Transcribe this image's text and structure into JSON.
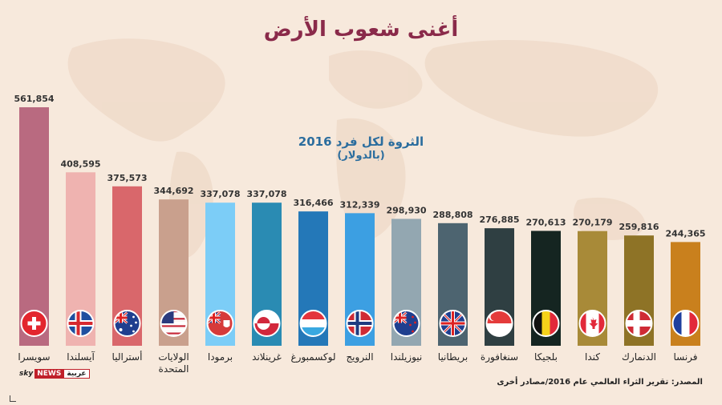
{
  "header": {
    "title": "أغنى شعوب الأرض"
  },
  "chart_data": {
    "type": "bar",
    "subtitle": "الثروة لكل فرد 2016",
    "unit": "(بالدولار)",
    "categories": [
      "سويسرا",
      "آيسلندا",
      "أستراليا",
      "الولايات المتحدة",
      "برمودا",
      "غرينلاند",
      "لوكسمبورغ",
      "النرويج",
      "نيوزيلندا",
      "بريطانيا",
      "سنغافورة",
      "بلجيكا",
      "كندا",
      "الدنمارك",
      "فرنسا"
    ],
    "values": [
      561854,
      408595,
      375573,
      344692,
      337078,
      337078,
      316466,
      312339,
      298930,
      288808,
      276885,
      270613,
      270179,
      259816,
      244365
    ],
    "value_labels": [
      "561,854",
      "408,595",
      "375,573",
      "344,692",
      "337,078",
      "337,078",
      "316,466",
      "312,339",
      "298,930",
      "288,808",
      "276,885",
      "270,613",
      "270,179",
      "259,816",
      "244,365"
    ],
    "bar_colors": [
      "#b96a80",
      "#efb3b0",
      "#d9676b",
      "#c9a08d",
      "#7ccdf7",
      "#2a8bb3",
      "#2478b8",
      "#3c9fe2",
      "#93a7b1",
      "#4d6470",
      "#2f3f42",
      "#152521",
      "#a88a38",
      "#8e7326",
      "#c9801d"
    ],
    "flags": [
      "switzerland-flag",
      "iceland-flag",
      "australia-flag",
      "usa-flag",
      "bermuda-flag",
      "greenland-flag",
      "luxembourg-flag",
      "norway-flag",
      "new-zealand-flag",
      "uk-flag",
      "singapore-flag",
      "belgium-flag",
      "canada-flag",
      "denmark-flag",
      "france-flag"
    ],
    "ylim": [
      0,
      561854
    ],
    "grid": false,
    "legend": "none"
  },
  "footer": {
    "source": "المصدر: تقرير الثراء العالمي عام 2016/مصادر أخرى",
    "logo_sky": "sky",
    "logo_news": "NEWS",
    "logo_arabia": "عربية"
  },
  "colors": {
    "background": "#f7e9dc",
    "title": "#8a2a4a",
    "subtitle": "#2b6d9e"
  }
}
